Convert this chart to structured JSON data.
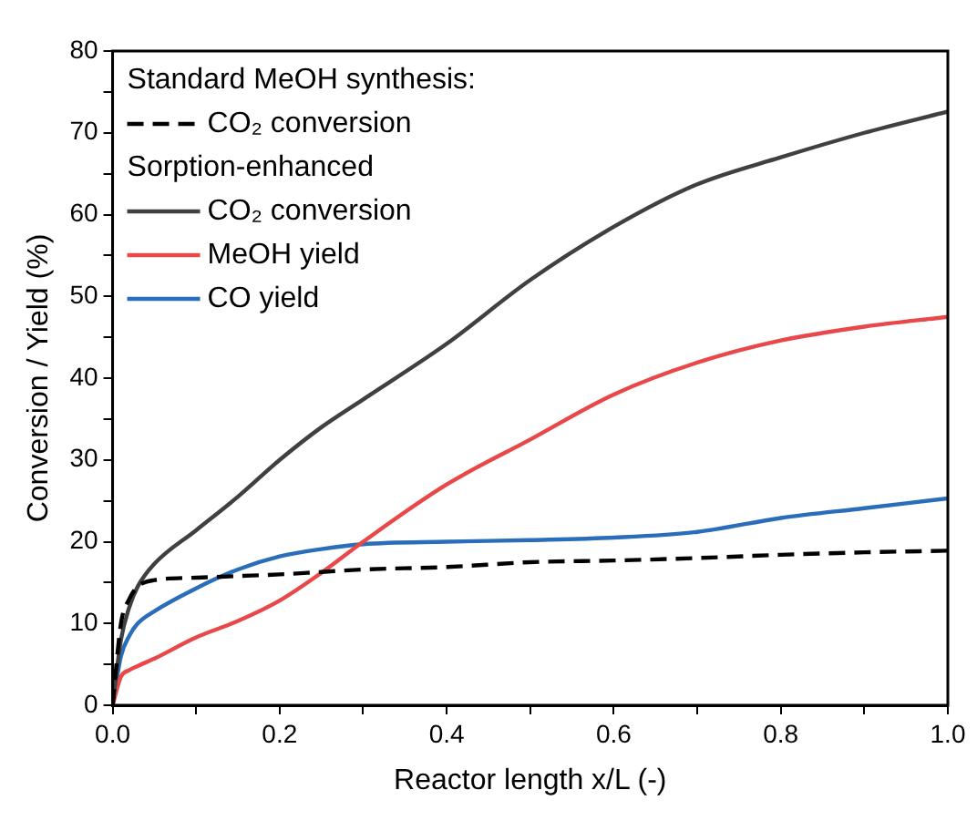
{
  "chart_data": {
    "type": "line",
    "xlabel": "Reactor length x/L (-)",
    "ylabel": "Conversion / Yield (%)",
    "annotations": [
      "Standard MeOH synthesis:",
      "Sorption-enhanced"
    ],
    "x": [
      0,
      0.01,
      0.02,
      0.03,
      0.05,
      0.1,
      0.15,
      0.2,
      0.25,
      0.3,
      0.4,
      0.5,
      0.6,
      0.7,
      0.8,
      0.9,
      1.0
    ],
    "series": [
      {
        "name": "CO₂ conversion",
        "color": "#000000",
        "line_style": "dashed",
        "values": [
          0,
          10,
          13,
          14.5,
          15.3,
          15.6,
          15.8,
          16,
          16.3,
          16.6,
          16.9,
          17.5,
          17.7,
          18,
          18.4,
          18.7,
          18.9
        ]
      },
      {
        "name": "CO₂ conversion",
        "color": "#404040",
        "line_style": "solid",
        "values": [
          0,
          8,
          12,
          14.5,
          17.3,
          21.4,
          25.5,
          30,
          34,
          37.4,
          44.2,
          52,
          58.5,
          63.7,
          67,
          70,
          72.6
        ]
      },
      {
        "name": "MeOH yield",
        "color": "#e8484a",
        "line_style": "solid",
        "values": [
          0,
          3.5,
          4.3,
          4.8,
          5.7,
          8.3,
          10.3,
          12.8,
          16.2,
          20,
          27,
          32.5,
          38,
          41.9,
          44.6,
          46.3,
          47.5
        ]
      },
      {
        "name": "CO yield",
        "color": "#2a6ebb",
        "line_style": "solid",
        "values": [
          0,
          6,
          8.5,
          10,
          11.5,
          14.3,
          16.6,
          18.2,
          19.1,
          19.7,
          20,
          20.2,
          20.5,
          21.2,
          22.9,
          24.1,
          25.3
        ]
      }
    ],
    "xlim": [
      0,
      1
    ],
    "xticks": [
      {
        "value": 0,
        "label": "0.0"
      },
      {
        "value": 0.1,
        "label": null
      },
      {
        "value": 0.2,
        "label": "0.2"
      },
      {
        "value": 0.3,
        "label": null
      },
      {
        "value": 0.4,
        "label": "0.4"
      },
      {
        "value": 0.5,
        "label": null
      },
      {
        "value": 0.6,
        "label": "0.6"
      },
      {
        "value": 0.7,
        "label": null
      },
      {
        "value": 0.8,
        "label": "0.8"
      },
      {
        "value": 0.9,
        "label": null
      },
      {
        "value": 1,
        "label": "1.0"
      }
    ],
    "ylim": [
      0,
      80
    ],
    "yticks": [
      0,
      {
        "value": 5,
        "label": null
      },
      10,
      {
        "value": 15,
        "label": null
      },
      20,
      {
        "value": 25,
        "label": null
      },
      30,
      {
        "value": 35,
        "label": null
      },
      40,
      {
        "value": 45,
        "label": null
      },
      50,
      {
        "value": 55,
        "label": null
      },
      60,
      {
        "value": 65,
        "label": null
      },
      70,
      {
        "value": 75,
        "label": null
      },
      80
    ],
    "grid": false,
    "legend": "top left",
    "marker": "none"
  }
}
